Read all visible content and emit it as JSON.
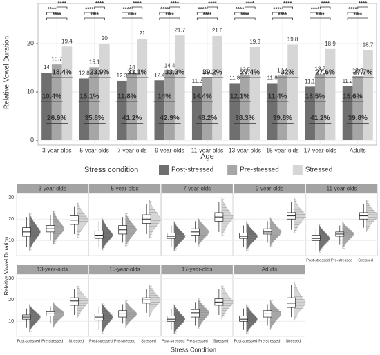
{
  "chart_data": [
    {
      "type": "bar",
      "y_label": "Relative Vowel Duration",
      "x_label": "Age",
      "categories": [
        "3-year-olds",
        "5-year-olds",
        "7-year-olds",
        "9-year-olds",
        "11-year-olds",
        "13-year-olds",
        "15-year-olds",
        "17-year-olds",
        "Adults"
      ],
      "series": [
        {
          "name": "Post-stressed",
          "color": "#6f6f6f",
          "values": [
            14,
            12.8,
            12.3,
            12.4,
            11.2,
            11.8,
            11.8,
            11.1,
            11.2
          ]
        },
        {
          "name": "Pre-stressed",
          "color": "#a6a6a6",
          "values": [
            15.7,
            15.1,
            14,
            14.4,
            13.1,
            13.5,
            13.4,
            13.7,
            13.3
          ]
        },
        {
          "name": "Stressed",
          "color": "#d6d6d6",
          "values": [
            19.4,
            20,
            21,
            21.7,
            21.6,
            19.3,
            19.8,
            18.9,
            18.7
          ]
        }
      ],
      "percent_labels": [
        [
          "18.4%",
          "23.9%",
          "33.1%",
          "33.3%",
          "39.2%",
          "29.4%",
          "32%",
          "27.6%",
          "27.7%"
        ],
        [
          "10.4%",
          "15.1%",
          "11.8%",
          "14%",
          "14.4%",
          "12.1%",
          "11.4%",
          "18.5%",
          "15.6%"
        ],
        [
          "26.9%",
          "35.8%",
          "41.2%",
          "42.9%",
          "48.2%",
          "38.3%",
          "39.8%",
          "41.2%",
          "39.8%"
        ]
      ],
      "significance": [
        "****",
        "****",
        "****"
      ],
      "ylim": [
        -1,
        28.3
      ],
      "yticks": [
        0,
        10,
        20
      ],
      "grid": true,
      "legend_title": "Stress condition",
      "legend_position": "bottom"
    },
    {
      "type": "box",
      "y_label": "Relative Vowel Duration",
      "x_label": "Stress Condition",
      "categories": [
        "Post-stressed",
        "Pre-stressed",
        "Stressed"
      ],
      "colors": [
        "#6f6f6f",
        "#a6a6a6",
        "#d6d6d6"
      ],
      "ylim": [
        3,
        32
      ],
      "yticks": [
        10,
        20,
        30
      ],
      "grid": true,
      "facets": [
        {
          "title": "3-year-olds",
          "boxes": [
            [
              7,
              12,
              14,
              16,
              21
            ],
            [
              10,
              14,
              15.5,
              17,
              22
            ],
            [
              13,
              17.5,
              19.5,
              21.5,
              26
            ]
          ]
        },
        {
          "title": "5-year-olds",
          "boxes": [
            [
              7,
              11,
              12.5,
              14.5,
              19
            ],
            [
              9,
              13,
              15,
              17,
              21
            ],
            [
              13,
              18,
              20,
              22,
              27
            ]
          ]
        },
        {
          "title": "7-year-olds",
          "boxes": [
            [
              7,
              11,
              12,
              13.5,
              17
            ],
            [
              9,
              12.5,
              14,
              15.5,
              19
            ],
            [
              14,
              19,
              21,
              23,
              28
            ]
          ]
        },
        {
          "title": "9-year-olds",
          "boxes": [
            [
              7,
              11,
              12,
              13.5,
              17
            ],
            [
              9,
              13,
              14,
              15.5,
              19
            ],
            [
              15,
              20,
              21.5,
              23,
              28
            ]
          ]
        },
        {
          "title": "11-year-olds",
          "boxes": [
            [
              6,
              10,
              11,
              12.5,
              16
            ],
            [
              8,
              12,
              13,
              14,
              17
            ],
            [
              16,
              20,
              21.5,
              23,
              27
            ]
          ]
        },
        {
          "title": "13-year-olds",
          "boxes": [
            [
              7,
              11,
              12,
              13,
              16
            ],
            [
              9,
              12.5,
              13.5,
              14.5,
              17
            ],
            [
              13,
              17.5,
              19.5,
              21,
              25
            ]
          ]
        },
        {
          "title": "15-year-olds",
          "boxes": [
            [
              6,
              10.5,
              12,
              13.5,
              17
            ],
            [
              9,
              12,
              13.5,
              15,
              18
            ],
            [
              14,
              18.5,
              20,
              21,
              25
            ]
          ]
        },
        {
          "title": "17-year-olds",
          "boxes": [
            [
              6,
              10,
              11,
              12.5,
              16
            ],
            [
              8,
              12,
              14,
              15.5,
              19
            ],
            [
              13,
              17.5,
              19,
              20.5,
              25
            ]
          ]
        },
        {
          "title": "Adults",
          "boxes": [
            [
              6,
              10,
              11,
              12.5,
              16
            ],
            [
              8,
              12,
              13.5,
              15,
              18
            ],
            [
              12,
              16.5,
              18.5,
              21,
              27
            ]
          ]
        }
      ]
    }
  ]
}
